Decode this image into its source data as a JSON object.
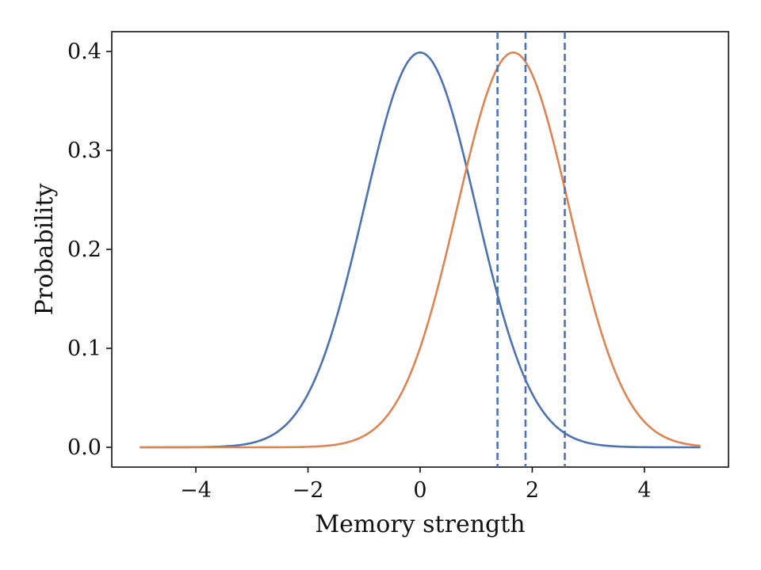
{
  "chart_data": {
    "type": "line",
    "title": "",
    "xlabel": "Memory strength",
    "ylabel": "Probability",
    "xlim": [
      -5.5,
      5.5
    ],
    "ylim": [
      -0.02,
      0.42
    ],
    "grid": false,
    "x_ticks": [
      -4,
      -2,
      0,
      2,
      4
    ],
    "x_tick_labels": [
      "−4",
      "−2",
      "0",
      "2",
      "4"
    ],
    "y_ticks": [
      0.0,
      0.1,
      0.2,
      0.3,
      0.4
    ],
    "y_tick_labels": [
      "0.0",
      "0.1",
      "0.2",
      "0.3",
      "0.4"
    ],
    "x_range": [
      -5,
      5
    ],
    "series": [
      {
        "distribution": "normal",
        "mean": 0,
        "sd": 1,
        "color": "#4c72b0",
        "x": [
          -5,
          -4,
          -3,
          -2.5,
          -2,
          -1.5,
          -1,
          -0.5,
          0,
          0.5,
          1,
          1.5,
          2,
          2.5,
          3,
          4,
          5
        ],
        "y": [
          0.0,
          0.0001,
          0.0044,
          0.0175,
          0.054,
          0.1295,
          0.242,
          0.3521,
          0.3989,
          0.3521,
          0.242,
          0.1295,
          0.054,
          0.0175,
          0.0044,
          0.0001,
          0.0
        ]
      },
      {
        "distribution": "normal",
        "mean": 1.66,
        "sd": 1,
        "color": "#dd8452",
        "x": [
          -5,
          -3,
          -2,
          -1,
          0,
          0.5,
          1,
          1.66,
          2,
          2.5,
          3,
          4,
          5
        ],
        "y": [
          0.0,
          0.0,
          0.0005,
          0.0115,
          0.1006,
          0.2037,
          0.3209,
          0.3989,
          0.3765,
          0.2805,
          0.1625,
          0.0258,
          0.0015
        ]
      }
    ],
    "vlines": [
      {
        "x": 1.38,
        "color": "#4c72b0",
        "style": "dashed"
      },
      {
        "x": 1.88,
        "color": "#4c72b0",
        "style": "dashed"
      },
      {
        "x": 2.58,
        "color": "#4c72b0",
        "style": "dashed"
      }
    ]
  }
}
